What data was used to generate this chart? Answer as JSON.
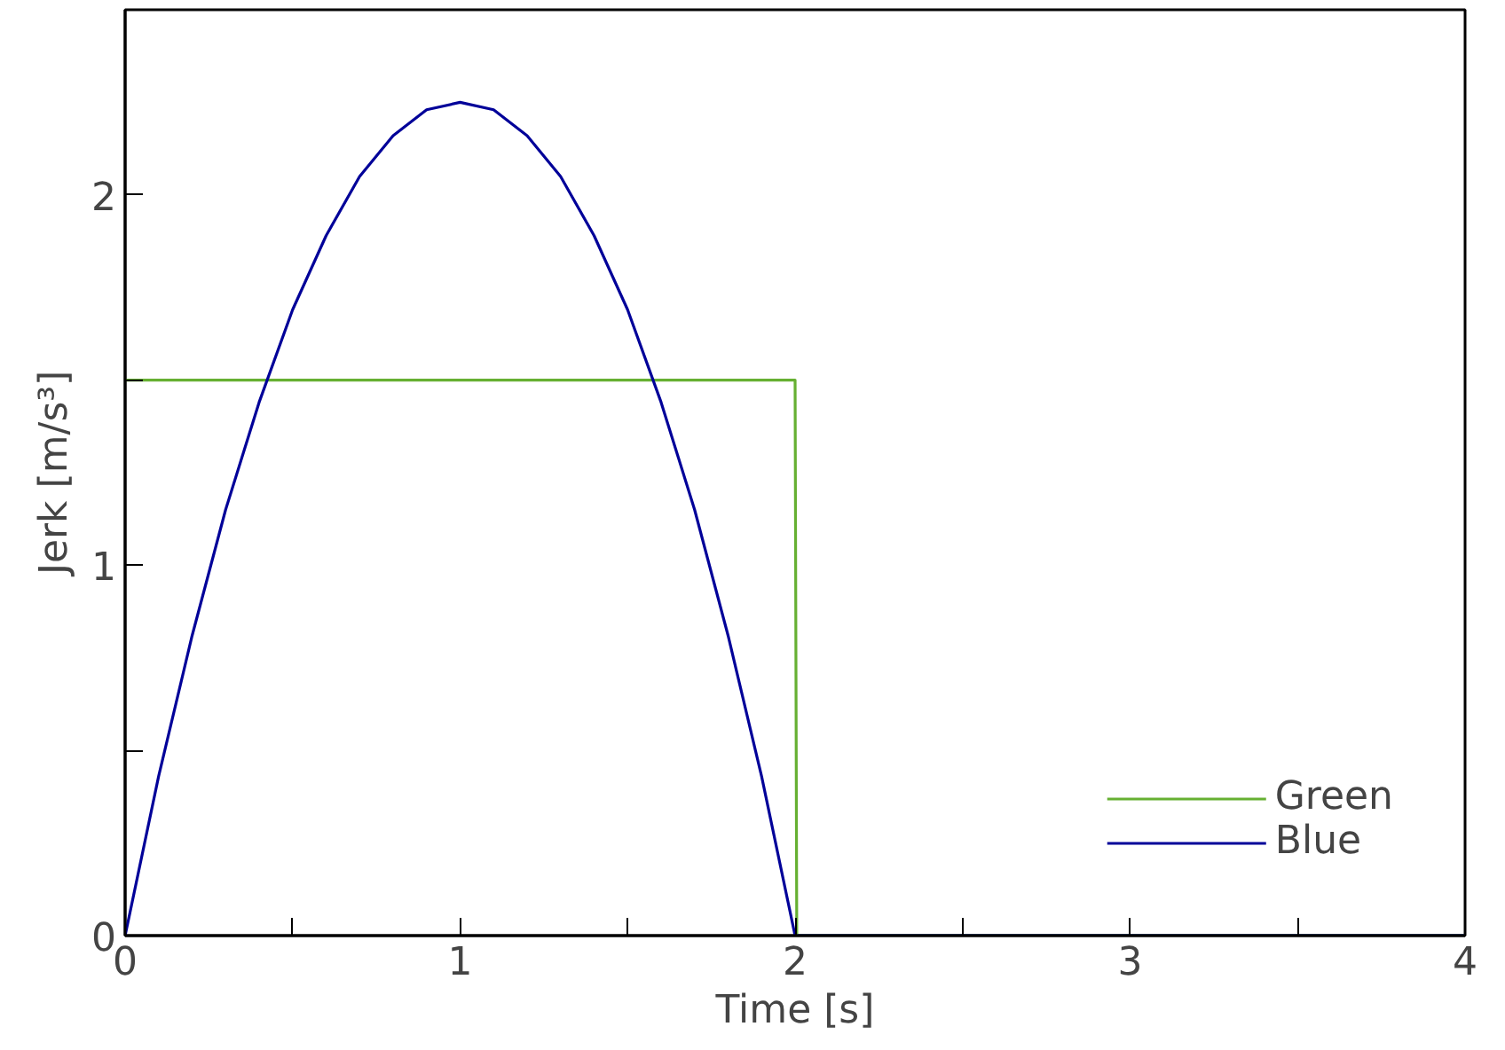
{
  "chart_data": {
    "type": "line",
    "xlabel": "Time [s]",
    "ylabel": "Jerk [m/s³]",
    "xlim": [
      0,
      4
    ],
    "ylim": [
      0,
      2.5
    ],
    "xticks": [
      0,
      {
        "value": 0.5,
        "label": null
      },
      1,
      {
        "value": 1.5,
        "label": null
      },
      2,
      {
        "value": 2.5,
        "label": null
      },
      3,
      {
        "value": 3.5,
        "label": null
      },
      4
    ],
    "yticks": [
      0,
      {
        "value": 0.5,
        "label": null
      },
      1,
      {
        "value": 1.5,
        "label": null
      },
      2,
      {
        "value": 2.5,
        "label": null
      }
    ],
    "grid": false,
    "legend": "bottom right",
    "line_style": "solid",
    "marker": "none",
    "series": [
      {
        "name": "Green",
        "color": "#66b032",
        "x": [
          0,
          2,
          2.005,
          4
        ],
        "values": [
          1.5,
          1.5,
          0,
          0
        ]
      },
      {
        "name": "Blue",
        "color": "#000099",
        "x": [
          0,
          0.1,
          0.2,
          0.3,
          0.4,
          0.5,
          0.6,
          0.7,
          0.8,
          0.9,
          1,
          1.1,
          1.2,
          1.3,
          1.4,
          1.5,
          1.6,
          1.7,
          1.8,
          1.9,
          2,
          4
        ],
        "values": [
          0,
          0.43,
          0.81,
          1.15,
          1.44,
          1.69,
          1.89,
          2.05,
          2.16,
          2.23,
          2.25,
          2.23,
          2.16,
          2.05,
          1.89,
          1.69,
          1.44,
          1.15,
          0.81,
          0.43,
          0,
          0
        ]
      }
    ]
  }
}
